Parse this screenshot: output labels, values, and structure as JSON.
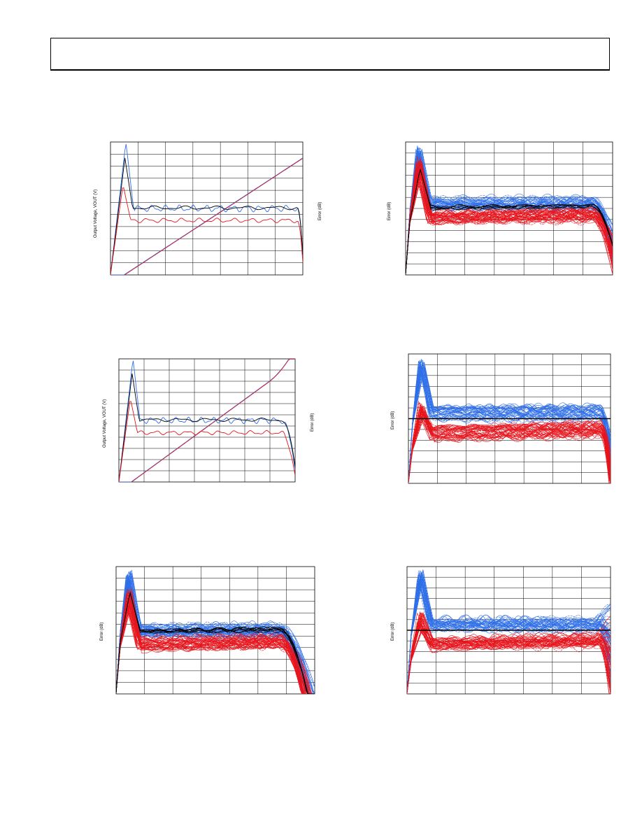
{
  "page": {
    "header_text": ""
  },
  "colors": {
    "blue": "#2f6fe8",
    "red": "#e8141c",
    "black": "#000000",
    "grid": "#000000"
  },
  "chart_data": [
    {
      "id": "p1",
      "type": "line",
      "ylabel": "Output Voltage, VOUT (V)",
      "y2label": "Error (dB)",
      "grid": true,
      "grid_cols": 7,
      "grid_rows": 11,
      "series_colors": [
        "blue",
        "red",
        "black"
      ],
      "error_traces": "few",
      "has_ramp": true
    },
    {
      "id": "p2",
      "type": "line",
      "ylabel": "Error (dB)",
      "grid": true,
      "grid_cols": 7,
      "grid_rows": 12,
      "series_colors": [
        "blue",
        "red",
        "black"
      ],
      "error_traces": "many"
    },
    {
      "id": "p3",
      "type": "line",
      "ylabel": "Output Voltage, VOUT (V)",
      "y2label": "Error (dB)",
      "grid": true,
      "grid_cols": 7,
      "grid_rows": 11,
      "series_colors": [
        "blue",
        "red",
        "black"
      ],
      "error_traces": "few",
      "has_ramp": true
    },
    {
      "id": "p4",
      "type": "line",
      "ylabel": "Error (dB)",
      "grid": true,
      "grid_cols": 7,
      "grid_rows": 12,
      "series_colors": [
        "blue",
        "red",
        "black"
      ],
      "error_traces": "many"
    },
    {
      "id": "p5",
      "type": "line",
      "ylabel": "Error (dB)",
      "grid": true,
      "grid_cols": 7,
      "grid_rows": 11,
      "series_colors": [
        "blue",
        "red",
        "black"
      ],
      "error_traces": "many"
    },
    {
      "id": "p6",
      "type": "line",
      "ylabel": "Error (dB)",
      "grid": true,
      "grid_cols": 7,
      "grid_rows": 12,
      "series_colors": [
        "blue",
        "red",
        "black"
      ],
      "error_traces": "many"
    }
  ]
}
